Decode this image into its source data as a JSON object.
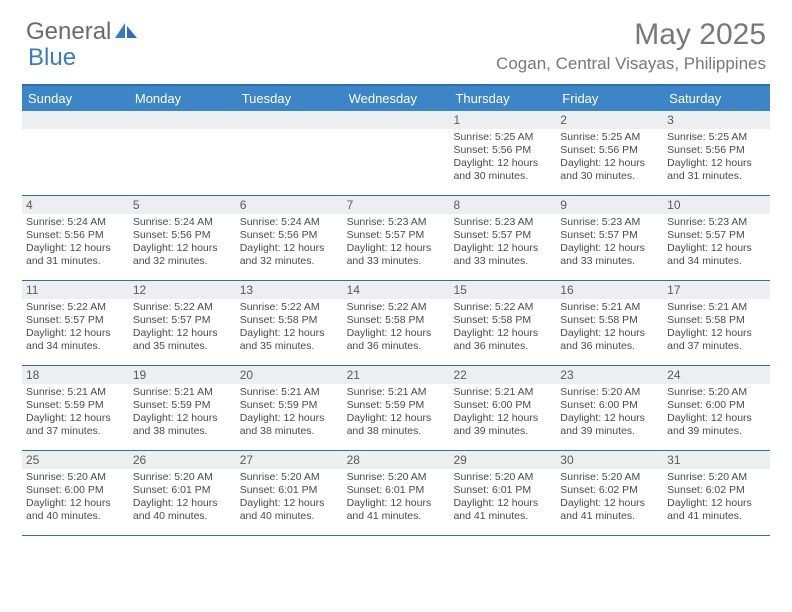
{
  "brand": {
    "part1": "General",
    "part2": "Blue"
  },
  "title": "May 2025",
  "location": "Cogan, Central Visayas, Philippines",
  "colors": {
    "header_bg": "#3c85c6",
    "header_border": "#2d6fb5",
    "daynum_bg": "#eceef0",
    "text_gray": "#787878",
    "brand_gray": "#6a6a6a",
    "brand_blue": "#3a7ac0"
  },
  "day_names": [
    "Sunday",
    "Monday",
    "Tuesday",
    "Wednesday",
    "Thursday",
    "Friday",
    "Saturday"
  ],
  "weeks": [
    [
      {
        "n": "",
        "sr": "",
        "ss": "",
        "dl": ""
      },
      {
        "n": "",
        "sr": "",
        "ss": "",
        "dl": ""
      },
      {
        "n": "",
        "sr": "",
        "ss": "",
        "dl": ""
      },
      {
        "n": "",
        "sr": "",
        "ss": "",
        "dl": ""
      },
      {
        "n": "1",
        "sr": "5:25 AM",
        "ss": "5:56 PM",
        "dl": "12 hours and 30 minutes."
      },
      {
        "n": "2",
        "sr": "5:25 AM",
        "ss": "5:56 PM",
        "dl": "12 hours and 30 minutes."
      },
      {
        "n": "3",
        "sr": "5:25 AM",
        "ss": "5:56 PM",
        "dl": "12 hours and 31 minutes."
      }
    ],
    [
      {
        "n": "4",
        "sr": "5:24 AM",
        "ss": "5:56 PM",
        "dl": "12 hours and 31 minutes."
      },
      {
        "n": "5",
        "sr": "5:24 AM",
        "ss": "5:56 PM",
        "dl": "12 hours and 32 minutes."
      },
      {
        "n": "6",
        "sr": "5:24 AM",
        "ss": "5:56 PM",
        "dl": "12 hours and 32 minutes."
      },
      {
        "n": "7",
        "sr": "5:23 AM",
        "ss": "5:57 PM",
        "dl": "12 hours and 33 minutes."
      },
      {
        "n": "8",
        "sr": "5:23 AM",
        "ss": "5:57 PM",
        "dl": "12 hours and 33 minutes."
      },
      {
        "n": "9",
        "sr": "5:23 AM",
        "ss": "5:57 PM",
        "dl": "12 hours and 33 minutes."
      },
      {
        "n": "10",
        "sr": "5:23 AM",
        "ss": "5:57 PM",
        "dl": "12 hours and 34 minutes."
      }
    ],
    [
      {
        "n": "11",
        "sr": "5:22 AM",
        "ss": "5:57 PM",
        "dl": "12 hours and 34 minutes."
      },
      {
        "n": "12",
        "sr": "5:22 AM",
        "ss": "5:57 PM",
        "dl": "12 hours and 35 minutes."
      },
      {
        "n": "13",
        "sr": "5:22 AM",
        "ss": "5:58 PM",
        "dl": "12 hours and 35 minutes."
      },
      {
        "n": "14",
        "sr": "5:22 AM",
        "ss": "5:58 PM",
        "dl": "12 hours and 36 minutes."
      },
      {
        "n": "15",
        "sr": "5:22 AM",
        "ss": "5:58 PM",
        "dl": "12 hours and 36 minutes."
      },
      {
        "n": "16",
        "sr": "5:21 AM",
        "ss": "5:58 PM",
        "dl": "12 hours and 36 minutes."
      },
      {
        "n": "17",
        "sr": "5:21 AM",
        "ss": "5:58 PM",
        "dl": "12 hours and 37 minutes."
      }
    ],
    [
      {
        "n": "18",
        "sr": "5:21 AM",
        "ss": "5:59 PM",
        "dl": "12 hours and 37 minutes."
      },
      {
        "n": "19",
        "sr": "5:21 AM",
        "ss": "5:59 PM",
        "dl": "12 hours and 38 minutes."
      },
      {
        "n": "20",
        "sr": "5:21 AM",
        "ss": "5:59 PM",
        "dl": "12 hours and 38 minutes."
      },
      {
        "n": "21",
        "sr": "5:21 AM",
        "ss": "5:59 PM",
        "dl": "12 hours and 38 minutes."
      },
      {
        "n": "22",
        "sr": "5:21 AM",
        "ss": "6:00 PM",
        "dl": "12 hours and 39 minutes."
      },
      {
        "n": "23",
        "sr": "5:20 AM",
        "ss": "6:00 PM",
        "dl": "12 hours and 39 minutes."
      },
      {
        "n": "24",
        "sr": "5:20 AM",
        "ss": "6:00 PM",
        "dl": "12 hours and 39 minutes."
      }
    ],
    [
      {
        "n": "25",
        "sr": "5:20 AM",
        "ss": "6:00 PM",
        "dl": "12 hours and 40 minutes."
      },
      {
        "n": "26",
        "sr": "5:20 AM",
        "ss": "6:01 PM",
        "dl": "12 hours and 40 minutes."
      },
      {
        "n": "27",
        "sr": "5:20 AM",
        "ss": "6:01 PM",
        "dl": "12 hours and 40 minutes."
      },
      {
        "n": "28",
        "sr": "5:20 AM",
        "ss": "6:01 PM",
        "dl": "12 hours and 41 minutes."
      },
      {
        "n": "29",
        "sr": "5:20 AM",
        "ss": "6:01 PM",
        "dl": "12 hours and 41 minutes."
      },
      {
        "n": "30",
        "sr": "5:20 AM",
        "ss": "6:02 PM",
        "dl": "12 hours and 41 minutes."
      },
      {
        "n": "31",
        "sr": "5:20 AM",
        "ss": "6:02 PM",
        "dl": "12 hours and 41 minutes."
      }
    ]
  ],
  "labels": {
    "sunrise": "Sunrise:",
    "sunset": "Sunset:",
    "daylight": "Daylight:"
  }
}
